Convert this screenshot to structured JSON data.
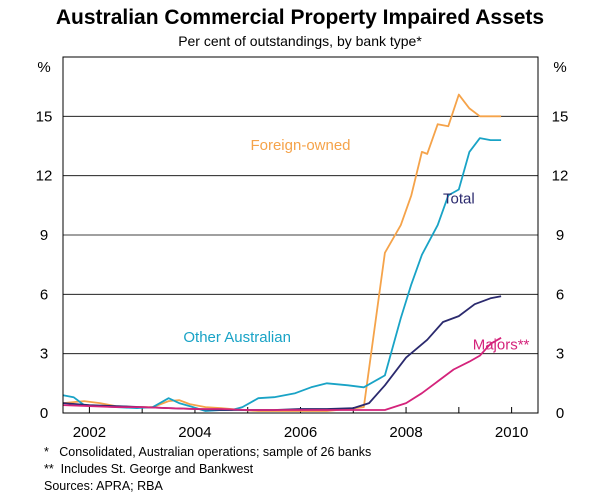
{
  "chart_data": {
    "type": "line",
    "title": "Australian Commercial Property Impaired Assets",
    "subtitle": "Per cent of outstandings, by bank type*",
    "y_unit_left": "%",
    "y_unit_right": "%",
    "ylim": [
      0,
      18
    ],
    "yticks": [
      0,
      3,
      6,
      9,
      12,
      15
    ],
    "ytick_labels": [
      "0",
      "3",
      "6",
      "9",
      "12",
      "15"
    ],
    "xlim": [
      2001.5,
      2010.5
    ],
    "xticks": [
      2002,
      2004,
      2006,
      2008,
      2010
    ],
    "xtick_labels": [
      "2002",
      "2004",
      "2006",
      "2008",
      "2010"
    ],
    "series": [
      {
        "name": "Foreign-owned",
        "color": "#f5a34a",
        "x": [
          2001.5,
          2001.9,
          2002.2,
          2002.5,
          2002.9,
          2003.2,
          2003.5,
          2003.7,
          2003.9,
          2004.2,
          2004.5,
          2004.9,
          2005.2,
          2005.5,
          2005.9,
          2006.2,
          2006.5,
          2006.9,
          2007.2,
          2007.6,
          2007.9,
          2008.1,
          2008.3,
          2008.4,
          2008.6,
          2008.8,
          2009.0,
          2009.2,
          2009.4,
          2009.6,
          2009.8
        ],
        "y": [
          0.5,
          0.6,
          0.5,
          0.35,
          0.3,
          0.3,
          0.6,
          0.65,
          0.45,
          0.3,
          0.25,
          0.15,
          0.1,
          0.1,
          0.1,
          0.1,
          0.1,
          0.2,
          0.3,
          8.1,
          9.5,
          11.0,
          13.2,
          13.1,
          14.6,
          14.5,
          16.1,
          15.4,
          15.0,
          15.0,
          15.0
        ]
      },
      {
        "name": "Other Australian",
        "color": "#19a3c6",
        "x": [
          2001.5,
          2001.7,
          2001.9,
          2002.2,
          2002.5,
          2002.9,
          2003.2,
          2003.5,
          2003.7,
          2003.9,
          2004.2,
          2004.5,
          2004.7,
          2004.9,
          2005.2,
          2005.5,
          2005.9,
          2006.2,
          2006.5,
          2006.9,
          2007.2,
          2007.6,
          2007.9,
          2008.1,
          2008.3,
          2008.6,
          2008.8,
          2009.0,
          2009.2,
          2009.4,
          2009.6,
          2009.8
        ],
        "y": [
          0.9,
          0.8,
          0.4,
          0.35,
          0.3,
          0.25,
          0.3,
          0.75,
          0.5,
          0.35,
          0.1,
          0.15,
          0.15,
          0.3,
          0.75,
          0.8,
          1.0,
          1.3,
          1.5,
          1.4,
          1.3,
          1.9,
          4.8,
          6.5,
          8.0,
          9.5,
          11.0,
          11.3,
          13.2,
          13.9,
          13.8,
          13.8
        ]
      },
      {
        "name": "Total",
        "color": "#2b2a6e",
        "x": [
          2001.5,
          2002.0,
          2002.5,
          2003.0,
          2003.5,
          2004.0,
          2004.5,
          2005.0,
          2005.5,
          2006.0,
          2006.5,
          2007.0,
          2007.3,
          2007.6,
          2008.0,
          2008.4,
          2008.7,
          2009.0,
          2009.3,
          2009.6,
          2009.8
        ],
        "y": [
          0.5,
          0.4,
          0.35,
          0.3,
          0.25,
          0.2,
          0.15,
          0.15,
          0.15,
          0.2,
          0.2,
          0.25,
          0.5,
          1.4,
          2.8,
          3.7,
          4.6,
          4.9,
          5.5,
          5.8,
          5.9
        ]
      },
      {
        "name": "Majors**",
        "color": "#d4237b",
        "x": [
          2001.5,
          2002.0,
          2002.5,
          2003.0,
          2003.5,
          2004.0,
          2004.5,
          2005.0,
          2005.5,
          2006.0,
          2006.5,
          2007.0,
          2007.3,
          2007.6,
          2008.0,
          2008.3,
          2008.6,
          2008.9,
          2009.2,
          2009.4,
          2009.6,
          2009.8
        ],
        "y": [
          0.4,
          0.35,
          0.3,
          0.3,
          0.25,
          0.2,
          0.2,
          0.15,
          0.15,
          0.15,
          0.15,
          0.15,
          0.15,
          0.15,
          0.5,
          1.0,
          1.6,
          2.2,
          2.6,
          2.9,
          3.5,
          3.8
        ]
      }
    ],
    "series_labels": [
      {
        "text": "Foreign-owned",
        "x": 2006.0,
        "y": 13.3,
        "color": "#f5a34a"
      },
      {
        "text": "Other Australian",
        "x": 2004.8,
        "y": 3.6,
        "color": "#19a3c6"
      },
      {
        "text": "Total",
        "x": 2009.0,
        "y": 10.6,
        "color": "#2b2a6e"
      },
      {
        "text": "Majors**",
        "x": 2009.8,
        "y": 3.2,
        "color": "#d4237b"
      }
    ],
    "footnotes": [
      "*   Consolidated, Australian operations; sample of 26 banks",
      "**  Includes St. George and Bankwest",
      "Sources: APRA; RBA"
    ]
  }
}
